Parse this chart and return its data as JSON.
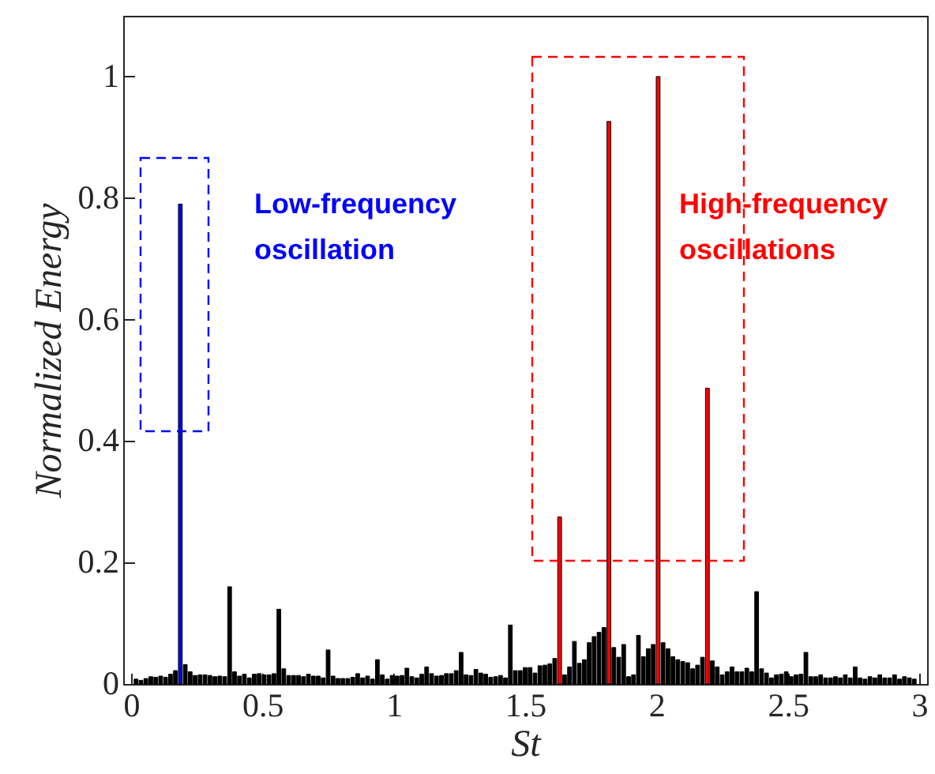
{
  "chart_data": {
    "type": "bar",
    "xlabel": "St",
    "ylabel": "Normalized Energy",
    "x": [
      0.01875,
      0.0375,
      0.05625,
      0.075,
      0.09375,
      0.1125,
      0.13125,
      0.15,
      0.16875,
      0.1875,
      0.20625,
      0.225,
      0.24375,
      0.2625,
      0.28125,
      0.3,
      0.31875,
      0.3375,
      0.35625,
      0.375,
      0.39375,
      0.4125,
      0.43125,
      0.45,
      0.46875,
      0.4875,
      0.50625,
      0.525,
      0.54375,
      0.5625,
      0.58125,
      0.6,
      0.61875,
      0.6375,
      0.65625,
      0.675,
      0.69375,
      0.7125,
      0.73125,
      0.75,
      0.76875,
      0.7875,
      0.80625,
      0.825,
      0.84375,
      0.8625,
      0.88125,
      0.9,
      0.91875,
      0.9375,
      0.95625,
      0.975,
      0.99375,
      1.0125,
      1.03125,
      1.05,
      1.06875,
      1.0875,
      1.10625,
      1.125,
      1.14375,
      1.1625,
      1.18125,
      1.2,
      1.21875,
      1.2375,
      1.25625,
      1.275,
      1.29375,
      1.3125,
      1.33125,
      1.35,
      1.36875,
      1.3875,
      1.40625,
      1.425,
      1.44375,
      1.4625,
      1.48125,
      1.5,
      1.51875,
      1.5375,
      1.55625,
      1.575,
      1.59375,
      1.6125,
      1.63125,
      1.65,
      1.66875,
      1.6875,
      1.70625,
      1.725,
      1.74375,
      1.7625,
      1.78125,
      1.8,
      1.81875,
      1.8375,
      1.85625,
      1.875,
      1.89375,
      1.9125,
      1.93125,
      1.95,
      1.96875,
      1.9875,
      2.00625,
      2.025,
      2.04375,
      2.0625,
      2.08125,
      2.1,
      2.11875,
      2.1375,
      2.15625,
      2.175,
      2.19375,
      2.2125,
      2.23125,
      2.25,
      2.26875,
      2.2875,
      2.30625,
      2.325,
      2.34375,
      2.3625,
      2.38125,
      2.4,
      2.41875,
      2.4375,
      2.45625,
      2.475,
      2.49375,
      2.5125,
      2.53125,
      2.55,
      2.56875,
      2.5875,
      2.60625,
      2.625,
      2.64375,
      2.6625,
      2.68125,
      2.7,
      2.71875,
      2.7375,
      2.75625,
      2.775,
      2.79375,
      2.8125,
      2.83125,
      2.85,
      2.86875,
      2.8875,
      2.90625,
      2.925,
      2.94375,
      2.9625,
      2.98125
    ],
    "values": [
      0.008,
      0.006,
      0.009,
      0.012,
      0.011,
      0.013,
      0.011,
      0.016,
      0.022,
      0.79,
      0.032,
      0.02,
      0.014,
      0.015,
      0.015,
      0.014,
      0.012,
      0.013,
      0.012,
      0.16,
      0.02,
      0.013,
      0.016,
      0.01,
      0.016,
      0.017,
      0.015,
      0.015,
      0.017,
      0.123,
      0.025,
      0.014,
      0.014,
      0.014,
      0.012,
      0.016,
      0.013,
      0.013,
      0.01,
      0.056,
      0.013,
      0.009,
      0.009,
      0.009,
      0.011,
      0.017,
      0.01,
      0.013,
      0.008,
      0.04,
      0.015,
      0.008,
      0.014,
      0.013,
      0.014,
      0.026,
      0.012,
      0.01,
      0.016,
      0.028,
      0.017,
      0.013,
      0.014,
      0.017,
      0.017,
      0.022,
      0.052,
      0.015,
      0.014,
      0.024,
      0.018,
      0.016,
      0.011,
      0.012,
      0.014,
      0.01,
      0.097,
      0.022,
      0.022,
      0.027,
      0.027,
      0.018,
      0.03,
      0.031,
      0.033,
      0.042,
      0.275,
      0.015,
      0.028,
      0.07,
      0.034,
      0.04,
      0.068,
      0.078,
      0.085,
      0.093,
      0.926,
      0.06,
      0.044,
      0.065,
      0.012,
      0.015,
      0.08,
      0.045,
      0.058,
      0.065,
      1.0,
      0.068,
      0.058,
      0.045,
      0.04,
      0.037,
      0.035,
      0.025,
      0.031,
      0.044,
      0.487,
      0.038,
      0.028,
      0.015,
      0.02,
      0.028,
      0.02,
      0.02,
      0.026,
      0.02,
      0.152,
      0.025,
      0.018,
      0.01,
      0.015,
      0.016,
      0.02,
      0.012,
      0.015,
      0.016,
      0.052,
      0.012,
      0.012,
      0.015,
      0.01,
      0.01,
      0.012,
      0.01,
      0.015,
      0.01,
      0.028,
      0.01,
      0.008,
      0.012,
      0.01,
      0.015,
      0.01,
      0.01,
      0.015,
      0.008,
      0.012,
      0.01,
      0.008
    ],
    "colors": [
      "#000000",
      "#000000",
      "#000000",
      "#000000",
      "#000000",
      "#000000",
      "#000000",
      "#000000",
      "#000000",
      "#0000ff",
      "#000000",
      "#000000",
      "#000000",
      "#000000",
      "#000000",
      "#000000",
      "#000000",
      "#000000",
      "#000000",
      "#000000",
      "#000000",
      "#000000",
      "#000000",
      "#000000",
      "#000000",
      "#000000",
      "#000000",
      "#000000",
      "#000000",
      "#000000",
      "#000000",
      "#000000",
      "#000000",
      "#000000",
      "#000000",
      "#000000",
      "#000000",
      "#000000",
      "#000000",
      "#000000",
      "#000000",
      "#000000",
      "#000000",
      "#000000",
      "#000000",
      "#000000",
      "#000000",
      "#000000",
      "#000000",
      "#000000",
      "#000000",
      "#000000",
      "#000000",
      "#000000",
      "#000000",
      "#000000",
      "#000000",
      "#000000",
      "#000000",
      "#000000",
      "#000000",
      "#000000",
      "#000000",
      "#000000",
      "#000000",
      "#000000",
      "#000000",
      "#000000",
      "#000000",
      "#000000",
      "#000000",
      "#000000",
      "#000000",
      "#000000",
      "#000000",
      "#000000",
      "#000000",
      "#000000",
      "#000000",
      "#000000",
      "#000000",
      "#000000",
      "#000000",
      "#000000",
      "#000000",
      "#000000",
      "#ff0000",
      "#000000",
      "#000000",
      "#000000",
      "#000000",
      "#000000",
      "#000000",
      "#000000",
      "#000000",
      "#000000",
      "#ff0000",
      "#000000",
      "#000000",
      "#000000",
      "#000000",
      "#000000",
      "#000000",
      "#000000",
      "#000000",
      "#000000",
      "#ff0000",
      "#000000",
      "#000000",
      "#000000",
      "#000000",
      "#000000",
      "#000000",
      "#000000",
      "#000000",
      "#000000",
      "#ff0000",
      "#000000",
      "#000000",
      "#000000",
      "#000000",
      "#000000",
      "#000000",
      "#000000",
      "#000000",
      "#000000",
      "#000000",
      "#000000",
      "#000000",
      "#000000",
      "#000000",
      "#000000",
      "#000000",
      "#000000",
      "#000000",
      "#000000",
      "#000000",
      "#000000",
      "#000000",
      "#000000",
      "#000000",
      "#000000",
      "#000000",
      "#000000",
      "#000000",
      "#000000",
      "#000000",
      "#000000",
      "#000000",
      "#000000",
      "#000000",
      "#000000",
      "#000000",
      "#000000",
      "#000000",
      "#000000",
      "#000000",
      "#000000",
      "#000000"
    ],
    "xlim": [
      0,
      3
    ],
    "xticks": [
      0,
      0.5,
      1,
      1.5,
      2,
      2.5,
      3
    ],
    "ylim": [
      0,
      1.1
    ],
    "yticks": [
      0,
      0.2,
      0.4,
      0.6,
      0.8,
      1
    ],
    "annotations": [
      "Low-frequency\noscillation",
      "High-frequency\noscillations"
    ]
  }
}
